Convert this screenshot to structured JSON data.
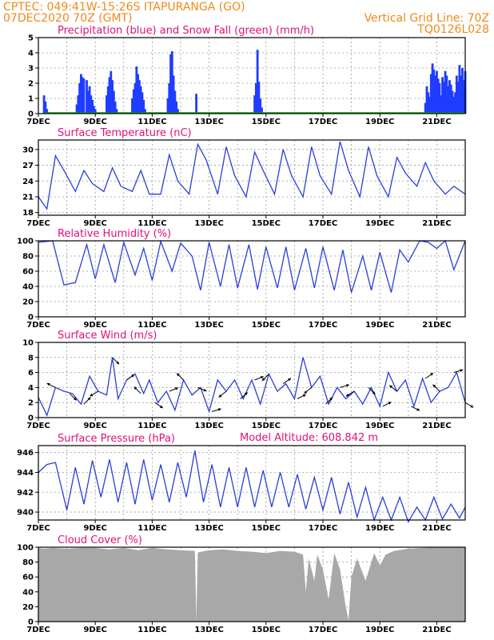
{
  "header": {
    "line1_left": "CPTEC:   049:41W-15:26S   ITAPURANGA (GO)",
    "line2_left": "07DEC2020 70Z (GMT)",
    "grid_note": "Vertical Grid Line: 70Z",
    "code": "TQ0126L028",
    "model_altitude": "Model Altitude: 608.842  m"
  },
  "colors": {
    "header": "#f08a1c",
    "title": "#e0107a",
    "precip": "#1f3cff",
    "snow": "#00aa00",
    "line": "#2a3fd8",
    "cloud": "#a8a8a8",
    "arrow": "#000000"
  },
  "x_axis": {
    "day_start": 7,
    "day_end": 22,
    "labels": [
      "7DEC",
      "9DEC",
      "11DEC",
      "13DEC",
      "15DEC",
      "17DEC",
      "19DEC",
      "21DEC"
    ],
    "label_days": [
      7,
      9,
      11,
      13,
      15,
      17,
      19,
      21
    ]
  },
  "chart_data": [
    {
      "id": "precip",
      "type": "bar",
      "title": "Precipitation (blue) and Snow Fall (green) (mm/h)",
      "ylim": [
        0,
        5
      ],
      "yticks": [
        0,
        1,
        2,
        3,
        4,
        5
      ],
      "grid": true,
      "series": [
        {
          "name": "Precipitation",
          "x": [
            7.2,
            7.25,
            7.3,
            8.35,
            8.4,
            8.45,
            8.5,
            8.55,
            8.6,
            8.7,
            8.75,
            8.8,
            8.85,
            8.9,
            8.95,
            9.0,
            9.4,
            9.45,
            9.5,
            9.55,
            9.6,
            9.65,
            9.7,
            9.75,
            10.3,
            10.35,
            10.4,
            10.45,
            10.5,
            10.55,
            10.6,
            10.65,
            10.7,
            10.75,
            11.55,
            11.6,
            11.65,
            11.7,
            11.75,
            11.8,
            11.85,
            11.9,
            12.55,
            14.6,
            14.65,
            14.7,
            14.75,
            14.8,
            14.85,
            20.6,
            20.65,
            20.7,
            20.75,
            20.8,
            20.85,
            20.9,
            20.95,
            21.0,
            21.05,
            21.1,
            21.15,
            21.2,
            21.25,
            21.3,
            21.35,
            21.4,
            21.45,
            21.5,
            21.55,
            21.6,
            21.65,
            21.7,
            21.75,
            21.8,
            21.85,
            21.9,
            21.95,
            22.0
          ],
          "values": [
            1.2,
            0.8,
            0.3,
            0.6,
            1.2,
            2.0,
            2.6,
            2.4,
            2.3,
            2.2,
            1.5,
            1.8,
            1.2,
            0.9,
            0.5,
            0.3,
            1.2,
            1.8,
            2.4,
            2.8,
            2.2,
            1.5,
            0.8,
            0.3,
            1.0,
            1.6,
            2.0,
            3.1,
            2.6,
            2.2,
            1.8,
            1.4,
            0.9,
            0.3,
            1.0,
            2.0,
            3.9,
            4.1,
            2.5,
            1.5,
            0.8,
            0.3,
            1.3,
            1.2,
            2.0,
            4.2,
            2.1,
            1.0,
            0.4,
            0.7,
            1.8,
            1.4,
            1.1,
            2.6,
            3.3,
            2.9,
            2.5,
            2.8,
            2.3,
            2.0,
            1.2,
            2.4,
            2.1,
            2.8,
            2.5,
            1.8,
            2.2,
            1.9,
            1.5,
            1.1,
            1.4,
            2.5,
            2.1,
            3.2,
            2.5,
            3.0,
            2.2,
            2.8
          ]
        },
        {
          "name": "Snow Fall",
          "x": [
            7.2,
            22.0
          ],
          "values": [
            0.05,
            0.05
          ]
        }
      ]
    },
    {
      "id": "temp",
      "type": "line",
      "title": "Surface Temperature (nC)",
      "ylim": [
        17.5,
        31.8
      ],
      "yticks": [
        18,
        21,
        24,
        27,
        30
      ],
      "grid": true,
      "series": [
        {
          "name": "Temperature",
          "x": [
            7.0,
            7.3,
            7.6,
            7.9,
            8.3,
            8.6,
            8.9,
            9.3,
            9.6,
            9.9,
            10.3,
            10.6,
            10.9,
            11.3,
            11.6,
            11.9,
            12.3,
            12.6,
            12.9,
            13.3,
            13.6,
            13.9,
            14.3,
            14.6,
            14.9,
            15.3,
            15.6,
            15.9,
            16.3,
            16.6,
            16.9,
            17.3,
            17.6,
            17.9,
            18.3,
            18.6,
            18.9,
            19.3,
            19.6,
            19.9,
            20.3,
            20.6,
            20.9,
            21.3,
            21.6,
            22.0
          ],
          "values": [
            21,
            18.7,
            28.8,
            26,
            22,
            26,
            23.5,
            22,
            26.5,
            23,
            22,
            26,
            21.5,
            21.5,
            29,
            24,
            21.5,
            31,
            28,
            21.5,
            30.5,
            25,
            21,
            29.5,
            26,
            21.5,
            30,
            25,
            21,
            30.5,
            25,
            21.5,
            31.5,
            26,
            21,
            30.5,
            25,
            21,
            28.5,
            25.5,
            23,
            27.5,
            24,
            21.5,
            23,
            21.5
          ]
        }
      ]
    },
    {
      "id": "rh",
      "type": "line",
      "title": "Relative Humidity (%)",
      "ylim": [
        0,
        100
      ],
      "yticks": [
        0,
        20,
        40,
        60,
        80,
        100
      ],
      "grid": true,
      "series": [
        {
          "name": "Humidity",
          "x": [
            7.0,
            7.5,
            7.9,
            8.3,
            8.7,
            9.0,
            9.3,
            9.7,
            10.0,
            10.4,
            10.7,
            11.0,
            11.3,
            11.7,
            12.0,
            12.4,
            12.7,
            13.0,
            13.4,
            13.7,
            14.0,
            14.4,
            14.7,
            15.0,
            15.4,
            15.7,
            16.0,
            16.4,
            16.7,
            17.0,
            17.4,
            17.7,
            18.0,
            18.4,
            18.7,
            19.0,
            19.4,
            19.7,
            20.0,
            20.4,
            20.7,
            21.0,
            21.3,
            21.6,
            22.0
          ],
          "values": [
            98,
            100,
            42,
            45,
            95,
            50,
            95,
            45,
            98,
            55,
            90,
            48,
            99,
            60,
            97,
            80,
            35,
            98,
            40,
            95,
            38,
            95,
            36,
            92,
            38,
            92,
            35,
            90,
            38,
            92,
            35,
            88,
            32,
            80,
            35,
            85,
            32,
            88,
            72,
            100,
            98,
            90,
            100,
            62,
            100
          ]
        }
      ]
    },
    {
      "id": "wind",
      "type": "line",
      "title": "Surface Wind (m/s)",
      "ylim": [
        0,
        10
      ],
      "yticks": [
        0,
        2,
        4,
        6,
        8,
        10
      ],
      "grid": true,
      "series": [
        {
          "name": "Wind speed",
          "x": [
            7.0,
            7.3,
            7.6,
            7.9,
            8.2,
            8.5,
            8.8,
            9.1,
            9.4,
            9.6,
            9.8,
            10.1,
            10.4,
            10.7,
            10.9,
            11.2,
            11.5,
            11.8,
            12.1,
            12.4,
            12.7,
            13.0,
            13.3,
            13.6,
            13.9,
            14.2,
            14.5,
            14.8,
            15.1,
            15.4,
            15.7,
            16.0,
            16.3,
            16.6,
            16.9,
            17.2,
            17.5,
            17.8,
            18.1,
            18.4,
            18.7,
            19.0,
            19.3,
            19.6,
            19.9,
            20.2,
            20.5,
            20.8,
            21.1,
            21.4,
            21.7,
            22.0
          ],
          "values": [
            2.7,
            0.3,
            4.0,
            3.5,
            3.2,
            1.8,
            5.5,
            3.5,
            3.0,
            8.0,
            2.5,
            5.0,
            5.8,
            3.2,
            5.0,
            2.0,
            3.5,
            1.0,
            5.0,
            3.0,
            4.0,
            0.8,
            5.0,
            3.5,
            5.0,
            2.5,
            5.0,
            1.8,
            5.8,
            3.5,
            4.5,
            2.5,
            8.0,
            4.0,
            5.5,
            1.8,
            4.0,
            2.5,
            3.5,
            1.8,
            4.0,
            1.5,
            6.0,
            3.5,
            5.0,
            1.5,
            5.2,
            2.0,
            3.5,
            4.0,
            6.0,
            2.0
          ]
        },
        {
          "name": "Wind vectors",
          "x": [
            7.6,
            8.1,
            8.6,
            9.1,
            9.6,
            10.1,
            10.6,
            11.1,
            11.6,
            12.1,
            12.6,
            13.1,
            13.6,
            14.1,
            14.6,
            15.1,
            15.6,
            16.1,
            16.6,
            17.1,
            17.6,
            18.1,
            18.6,
            19.1,
            19.6,
            20.1,
            20.6,
            21.1,
            21.6,
            22.0
          ],
          "u": [
            -1,
            1,
            1,
            -1,
            1,
            1,
            -1,
            1,
            1,
            -1,
            1,
            1,
            -1,
            1,
            1,
            -1,
            1,
            1,
            -1,
            1,
            1,
            -1,
            1,
            1,
            -1,
            1,
            1,
            -1,
            1,
            1
          ],
          "v": [
            0.5,
            -1,
            1,
            -0.6,
            -1,
            0.7,
            1,
            -0.7,
            0.4,
            1,
            -0.4,
            0.3,
            -0.8,
            0.9,
            0.4,
            -1,
            0.7,
            0.5,
            -0.8,
            1,
            0.3,
            -0.6,
            -1,
            0.5,
            0.8,
            -0.5,
            0.7,
            1,
            0.3,
            -0.6
          ]
        }
      ]
    },
    {
      "id": "press",
      "type": "line",
      "title": "Surface Pressure (hPa)",
      "ylim": [
        939.2,
        946.7
      ],
      "yticks": [
        940,
        942,
        944,
        946
      ],
      "grid": true,
      "series": [
        {
          "name": "Pressure",
          "x": [
            7.0,
            7.3,
            7.6,
            8.0,
            8.3,
            8.6,
            8.9,
            9.2,
            9.5,
            9.8,
            10.1,
            10.4,
            10.7,
            11.0,
            11.3,
            11.6,
            11.9,
            12.2,
            12.5,
            12.8,
            13.1,
            13.4,
            13.7,
            14.0,
            14.3,
            14.6,
            14.9,
            15.2,
            15.5,
            15.8,
            16.1,
            16.4,
            16.7,
            17.0,
            17.3,
            17.6,
            17.9,
            18.2,
            18.5,
            18.8,
            19.1,
            19.4,
            19.7,
            20.0,
            20.3,
            20.6,
            20.9,
            21.2,
            21.5,
            21.8,
            22.0
          ],
          "values": [
            944,
            944.8,
            945,
            940.2,
            944.5,
            940.8,
            945.2,
            941.5,
            945.3,
            941,
            945,
            940.8,
            945.3,
            941.2,
            944.8,
            941,
            945,
            941.5,
            946.2,
            941,
            944.8,
            940.5,
            944.5,
            940.5,
            944.5,
            940.5,
            944.2,
            940.5,
            944,
            940.5,
            943.8,
            940.3,
            943.5,
            940.2,
            943.5,
            939.8,
            943,
            939.5,
            942.5,
            939.2,
            941.5,
            939.2,
            941.5,
            939,
            940.5,
            939.2,
            941.5,
            939.3,
            940.8,
            939.4,
            940.5
          ]
        }
      ]
    },
    {
      "id": "cloud",
      "type": "area",
      "title": "Cloud Cover (%)",
      "ylim": [
        0,
        100
      ],
      "yticks": [
        0,
        20,
        40,
        60,
        80,
        100
      ],
      "grid": true,
      "series": [
        {
          "name": "Cloud cover",
          "x": [
            7.0,
            7.2,
            7.5,
            8.0,
            8.5,
            9.0,
            9.5,
            10.0,
            10.5,
            11.0,
            11.5,
            12.0,
            12.5,
            12.55,
            12.6,
            13.0,
            13.5,
            14.0,
            14.5,
            15.0,
            15.5,
            16.0,
            16.3,
            16.4,
            16.5,
            16.7,
            16.8,
            17.0,
            17.2,
            17.4,
            17.6,
            17.8,
            17.9,
            18.0,
            18.2,
            18.5,
            18.8,
            19.0,
            19.2,
            19.5,
            20.0,
            20.5,
            21.0,
            21.5,
            22.0
          ],
          "values": [
            99,
            98,
            99,
            98,
            99,
            99,
            97,
            99,
            96,
            99,
            97,
            96,
            95,
            2,
            93,
            96,
            97,
            95,
            94,
            92,
            95,
            94,
            90,
            40,
            85,
            55,
            90,
            70,
            30,
            92,
            70,
            20,
            2,
            60,
            85,
            55,
            92,
            75,
            90,
            95,
            98,
            99,
            100,
            100,
            100
          ]
        }
      ]
    }
  ]
}
